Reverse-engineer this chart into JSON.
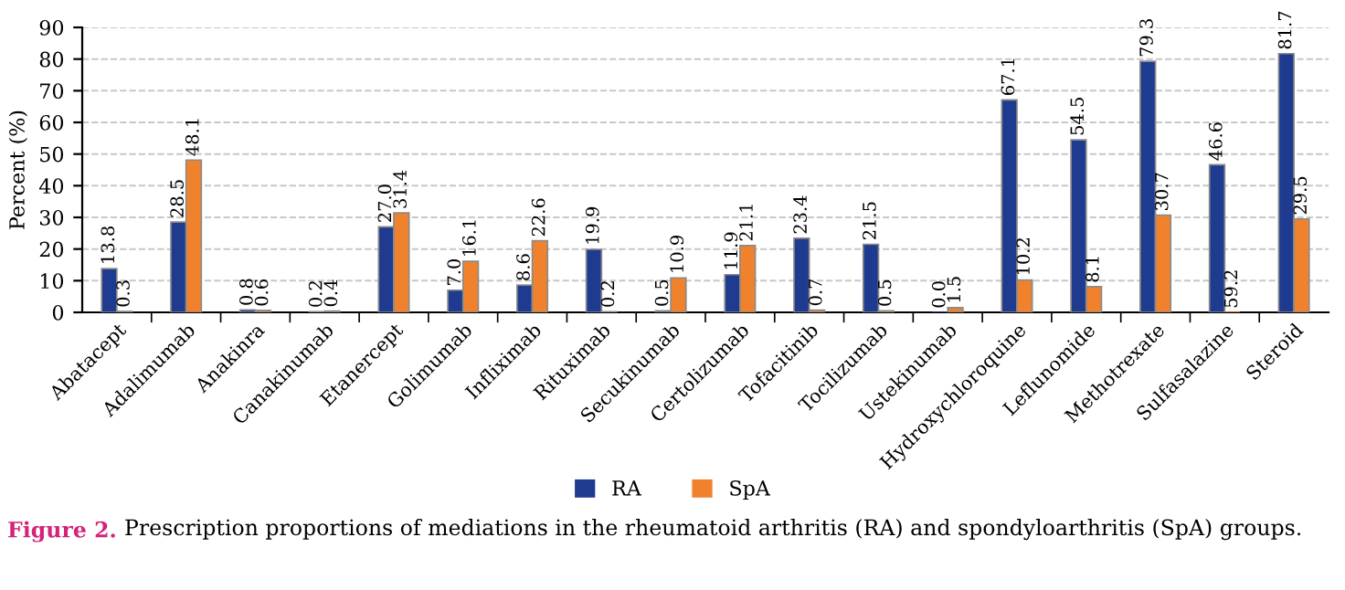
{
  "chart_data": {
    "type": "bar",
    "ylabel": "Percent (%)",
    "categories": [
      "Abatacept",
      "Adalimumab",
      "Anakinra",
      "Canakinumab",
      "Etanercept",
      "Golimumab",
      "Infliximab",
      "Rituximab",
      "Secukinumab",
      "Certolizumab",
      "Tofacitinib",
      "Tocilizumab",
      "Ustekinumab",
      "Hydroxychloroquine",
      "Leflunomide",
      "Methotrexate",
      "Sulfasalazine",
      "Steroid"
    ],
    "series": [
      {
        "name": "RA",
        "color": "#1f3b8f",
        "values": [
          13.8,
          28.5,
          0.8,
          0.2,
          27.0,
          7.0,
          8.6,
          19.9,
          0.5,
          11.9,
          23.4,
          21.5,
          0.0,
          67.1,
          54.5,
          79.3,
          46.6,
          81.7
        ],
        "value_labels": [
          "13.8",
          "28.5",
          "0.8",
          "0.2",
          "27.0",
          "7.0",
          "8.6",
          "19.9",
          "0.5",
          "11.9",
          "23.4",
          "21.5",
          "0.0",
          "67.1",
          "54.5",
          "79.3",
          "46.6",
          "81.7"
        ]
      },
      {
        "name": "SpA",
        "color": "#f0822e",
        "values": [
          0.3,
          48.1,
          0.6,
          0.4,
          31.4,
          16.1,
          22.6,
          0.2,
          10.9,
          21.1,
          0.7,
          0.5,
          1.5,
          10.2,
          8.1,
          30.7,
          null,
          29.5
        ],
        "value_labels": [
          "0.3",
          "48.1",
          "0.6",
          "0.4",
          "31.4",
          "16.1",
          "22.6",
          "0.2",
          "10.9",
          "21.1",
          "0.7",
          "0.5",
          "1.5",
          "10.2",
          "8.1",
          "30.7",
          "59.2",
          "29.5"
        ]
      }
    ],
    "ylim": [
      0,
      90
    ],
    "yticks": [
      0,
      10,
      20,
      30,
      40,
      50,
      60,
      70,
      80,
      90
    ],
    "grid": "y",
    "legend": "bottom",
    "annotations": [
      "Figure 2.",
      "Prescription proportions of mediations in the rheumatoid arthritis (RA) and spondyloarthritis (SpA) groups."
    ]
  }
}
